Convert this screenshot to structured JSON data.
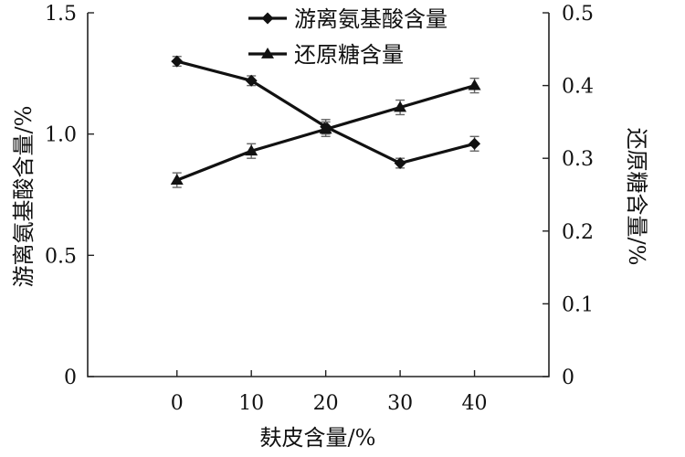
{
  "chart_data": {
    "type": "line",
    "x": [
      0,
      10,
      20,
      30,
      40
    ],
    "xlabel": "麸皮含量/%",
    "xlim": [
      -12,
      50
    ],
    "xticks": [
      "0",
      "10",
      "20",
      "30",
      "40"
    ],
    "ylabel_left": "游离氨基酸含量/%",
    "ylim_left": [
      0,
      1.5
    ],
    "yticks_left": [
      "0",
      "0.5",
      "1.0",
      "1.5"
    ],
    "ylabel_right": "还原糖含量/%",
    "ylim_right": [
      0,
      0.5
    ],
    "yticks_right": [
      "0",
      "0.1",
      "0.2",
      "0.3",
      "0.4",
      "0.5"
    ],
    "series": [
      {
        "name": "游离氨基酸含量",
        "axis": "left",
        "marker": "diamond",
        "values": [
          1.3,
          1.22,
          1.03,
          0.88,
          0.96
        ],
        "errors": [
          0.02,
          0.02,
          0.03,
          0.02,
          0.03
        ]
      },
      {
        "name": "还原糖含量",
        "axis": "right",
        "marker": "triangle",
        "values": [
          0.27,
          0.31,
          0.34,
          0.37,
          0.4
        ],
        "errors": [
          0.01,
          0.01,
          0.01,
          0.01,
          0.01
        ]
      }
    ],
    "legend": "top-center",
    "grid": false,
    "colors": {
      "line": "#111111",
      "error_bar": "#666666"
    }
  }
}
